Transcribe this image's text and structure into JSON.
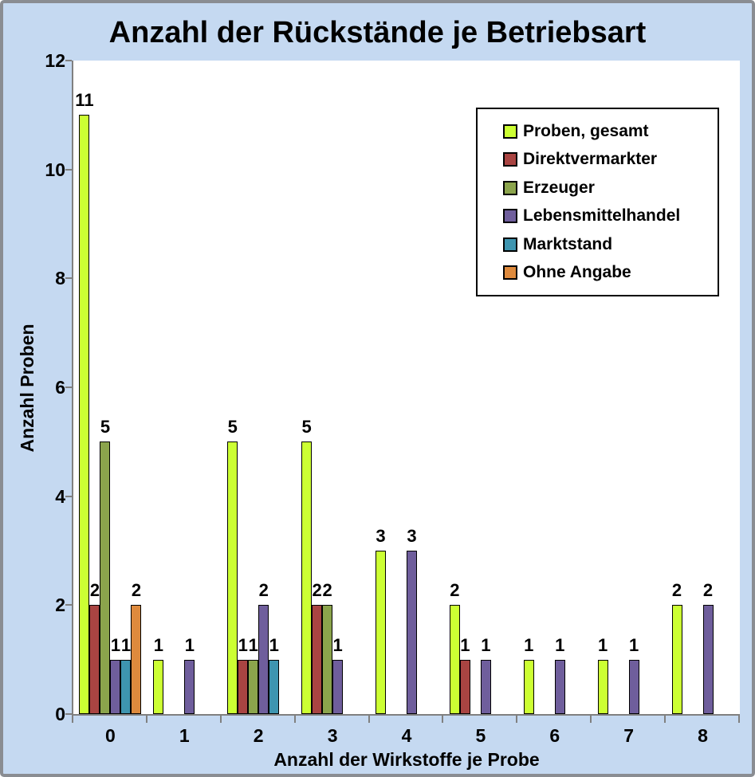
{
  "window": {
    "background_color": "#C5D9F1",
    "frame_border_color": "#8A8D92",
    "plot_background_color": "#FFFFFF",
    "axis_color": "#808080"
  },
  "chart_data": {
    "type": "bar",
    "title": "Anzahl der Rückstände je Betriebsart",
    "xlabel": "Anzahl der Wirkstoffe je Probe",
    "ylabel": "Anzahl Proben",
    "categories": [
      "0",
      "1",
      "2",
      "3",
      "4",
      "5",
      "6",
      "7",
      "8"
    ],
    "series": [
      {
        "name": "Proben, gesamt",
        "color": "#CCFF33",
        "values": [
          11,
          1,
          5,
          5,
          3,
          2,
          1,
          1,
          2
        ]
      },
      {
        "name": "Direktvermarkter",
        "color": "#A94442",
        "values": [
          2,
          0,
          1,
          2,
          0,
          1,
          0,
          0,
          0
        ]
      },
      {
        "name": "Erzeuger",
        "color": "#8BA44C",
        "values": [
          5,
          0,
          1,
          2,
          0,
          0,
          0,
          0,
          0
        ]
      },
      {
        "name": "Lebensmittelhandel",
        "color": "#6F5E9C",
        "values": [
          1,
          1,
          2,
          1,
          3,
          1,
          1,
          1,
          2
        ]
      },
      {
        "name": "Marktstand",
        "color": "#3E95B0",
        "values": [
          1,
          0,
          1,
          0,
          0,
          0,
          0,
          0,
          0
        ]
      },
      {
        "name": "Ohne Angabe",
        "color": "#DE8A3D",
        "values": [
          2,
          0,
          0,
          0,
          0,
          0,
          0,
          0,
          0
        ]
      }
    ],
    "ylim": [
      0,
      12
    ],
    "yticks": [
      0,
      2,
      4,
      6,
      8,
      10,
      12
    ],
    "bar_labels_shown": true,
    "grid": false,
    "legend_position": "top-right",
    "bar_border_color": "#000000"
  }
}
